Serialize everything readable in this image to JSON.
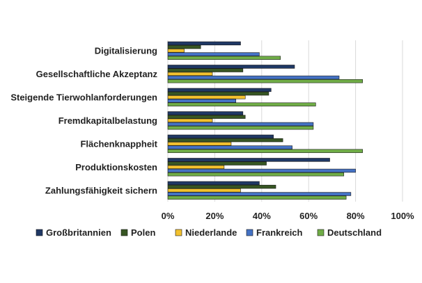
{
  "chart_data": {
    "type": "bar",
    "orientation": "horizontal",
    "title": "",
    "xlabel": "",
    "ylabel": "",
    "xlim": [
      0,
      100
    ],
    "x_ticks": [
      "0%",
      "20%",
      "40%",
      "60%",
      "80%",
      "100%"
    ],
    "grid": true,
    "legend_position": "bottom",
    "categories": [
      "Digitalisierung",
      "Gesellschaftliche Akzeptanz",
      "Steigende Tierwohlanforderungen",
      "Fremdkapitalbelastung",
      "Flächenknappheit",
      "Produktionskosten",
      "Zahlungsfähigkeit sichern"
    ],
    "series": [
      {
        "name": "Großbritannien",
        "color": "#1f3864",
        "values": [
          31,
          54,
          44,
          32,
          45,
          69,
          39
        ]
      },
      {
        "name": "Polen",
        "color": "#375623",
        "values": [
          14,
          32,
          43,
          33,
          49,
          42,
          46
        ]
      },
      {
        "name": "Niederlande",
        "color": "#f2c12e",
        "values": [
          7,
          19,
          33,
          19,
          27,
          24,
          31
        ]
      },
      {
        "name": "Frankreich",
        "color": "#4472c4",
        "values": [
          39,
          73,
          29,
          62,
          53,
          80,
          78
        ]
      },
      {
        "name": "Deutschland",
        "color": "#70ad47",
        "values": [
          48,
          83,
          63,
          62,
          83,
          75,
          76
        ]
      }
    ]
  }
}
